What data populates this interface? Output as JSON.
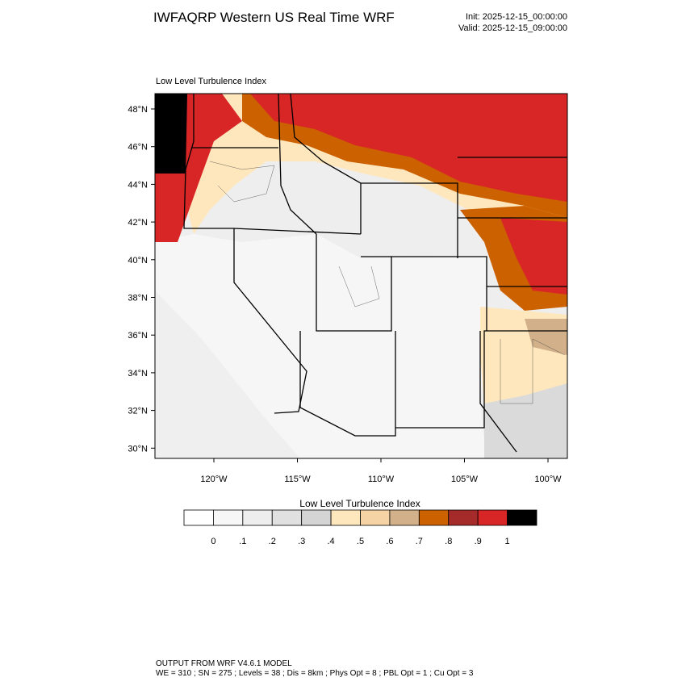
{
  "header": {
    "title": "IWFAQRP Western US Real Time WRF",
    "init": "Init: 2025-12-15_00:00:00",
    "valid": "Valid: 2025-12-15_09:00:00"
  },
  "map": {
    "subtitle": "Low Level Turbulence Index",
    "lat_labels": [
      "48°N",
      "46°N",
      "44°N",
      "42°N",
      "40°N",
      "38°N",
      "36°N",
      "34°N",
      "32°N",
      "30°N"
    ],
    "lon_labels": [
      "120°W",
      "115°W",
      "110°W",
      "105°W",
      "100°W"
    ]
  },
  "colorbar": {
    "title": "Low Level Turbulence Index",
    "labels": [
      "0",
      ".1",
      ".2",
      ".3",
      ".4",
      ".5",
      ".6",
      ".7",
      ".8",
      ".9",
      "1"
    ],
    "colors": [
      "#ffffff",
      "#f7f7f7",
      "#eeeeee",
      "#e0e0e0",
      "#d4d4d4",
      "#ffe7bd",
      "#f5d3a5",
      "#d1b08a",
      "#cc6100",
      "#a52a2a",
      "#d82626",
      "#000000"
    ]
  },
  "footer": {
    "line1": "OUTPUT FROM WRF V4.6.1 MODEL",
    "line2": "WE = 310 ; SN = 275 ; Levels = 38 ; Dis = 8km ; Phys Opt = 8 ; PBL Opt = 1 ; Cu Opt = 3"
  }
}
